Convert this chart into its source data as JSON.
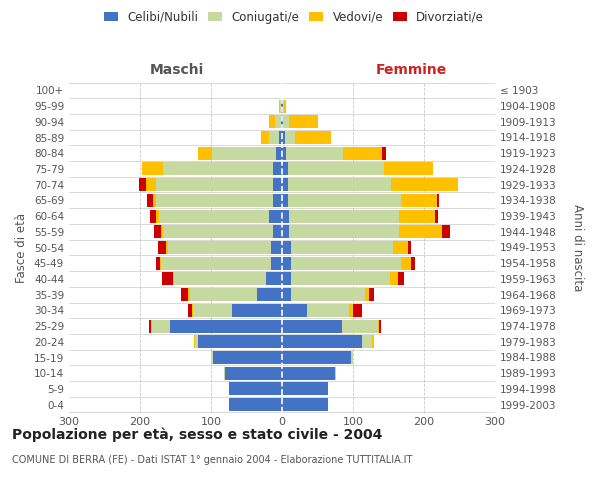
{
  "age_groups": [
    "0-4",
    "5-9",
    "10-14",
    "15-19",
    "20-24",
    "25-29",
    "30-34",
    "35-39",
    "40-44",
    "45-49",
    "50-54",
    "55-59",
    "60-64",
    "65-69",
    "70-74",
    "75-79",
    "80-84",
    "85-89",
    "90-94",
    "95-99",
    "100+"
  ],
  "birth_years": [
    "1999-2003",
    "1994-1998",
    "1989-1993",
    "1984-1988",
    "1979-1983",
    "1974-1978",
    "1969-1973",
    "1964-1968",
    "1959-1963",
    "1954-1958",
    "1949-1953",
    "1944-1948",
    "1939-1943",
    "1934-1938",
    "1929-1933",
    "1924-1928",
    "1919-1923",
    "1914-1918",
    "1909-1913",
    "1904-1908",
    "≤ 1903"
  ],
  "male": {
    "celibi": [
      75,
      75,
      80,
      97,
      118,
      158,
      70,
      35,
      22,
      15,
      15,
      12,
      18,
      12,
      12,
      12,
      8,
      4,
      2,
      1,
      0
    ],
    "coniugati": [
      0,
      0,
      1,
      3,
      5,
      25,
      55,
      95,
      130,
      155,
      145,
      155,
      155,
      165,
      165,
      155,
      90,
      15,
      8,
      2,
      0
    ],
    "vedovi": [
      0,
      0,
      0,
      0,
      1,
      2,
      2,
      2,
      2,
      2,
      3,
      3,
      5,
      5,
      15,
      30,
      20,
      10,
      8,
      1,
      0
    ],
    "divorziati": [
      0,
      0,
      0,
      0,
      0,
      2,
      5,
      10,
      15,
      5,
      12,
      10,
      8,
      8,
      10,
      0,
      0,
      0,
      0,
      0,
      0
    ]
  },
  "female": {
    "nubili": [
      65,
      65,
      75,
      97,
      112,
      85,
      35,
      12,
      12,
      12,
      12,
      10,
      10,
      8,
      8,
      8,
      6,
      4,
      2,
      1,
      0
    ],
    "coniugate": [
      0,
      0,
      1,
      3,
      15,
      50,
      60,
      105,
      140,
      155,
      145,
      155,
      155,
      160,
      145,
      135,
      80,
      15,
      8,
      2,
      0
    ],
    "vedove": [
      0,
      0,
      0,
      0,
      2,
      2,
      5,
      5,
      12,
      15,
      20,
      60,
      50,
      50,
      95,
      70,
      55,
      50,
      40,
      2,
      0
    ],
    "divorziate": [
      0,
      0,
      0,
      0,
      0,
      2,
      12,
      8,
      8,
      5,
      5,
      12,
      5,
      3,
      0,
      0,
      5,
      0,
      0,
      0,
      0
    ]
  },
  "colors": {
    "celibi": "#4472c4",
    "coniugati": "#c5d9a0",
    "vedovi": "#ffc000",
    "divorziati": "#cc0000"
  },
  "xlim": 300,
  "title": "Popolazione per età, sesso e stato civile - 2004",
  "subtitle": "COMUNE DI BERRA (FE) - Dati ISTAT 1° gennaio 2004 - Elaborazione TUTTITALIA.IT",
  "ylabel_left": "Fasce di età",
  "ylabel_right": "Anni di nascita",
  "xlabel_left": "Maschi",
  "xlabel_right": "Femmine",
  "legend_labels": [
    "Celibi/Nubili",
    "Coniugati/e",
    "Vedovi/e",
    "Divorziati/e"
  ],
  "background_color": "#ffffff",
  "grid_color": "#bbbbbb"
}
